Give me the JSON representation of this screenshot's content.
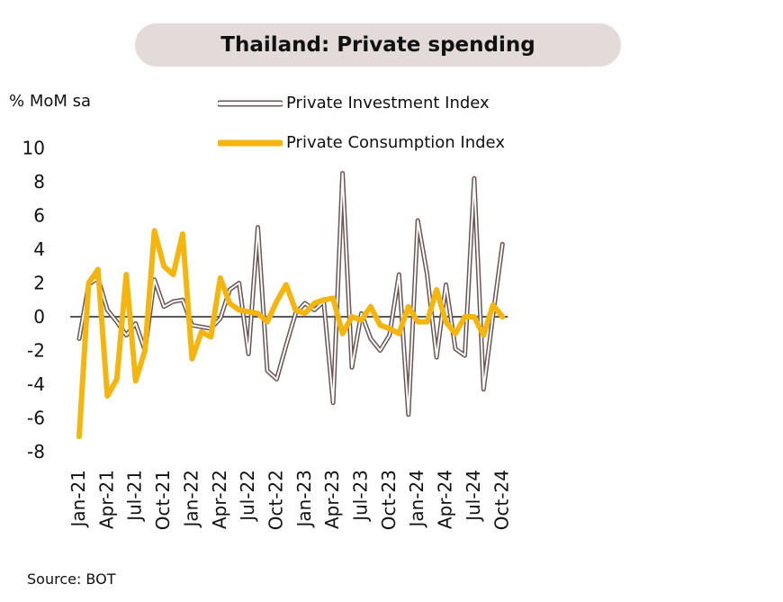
{
  "chart_data": {
    "type": "line",
    "title": "Thailand: Private spending",
    "ylabel": "% MoM sa",
    "source": "Source: BOT",
    "ylim": [
      -8,
      10
    ],
    "yticks": [
      10,
      8,
      6,
      4,
      2,
      0,
      -2,
      -4,
      -6,
      -8
    ],
    "x": [
      "Jan-21",
      "Feb-21",
      "Mar-21",
      "Apr-21",
      "May-21",
      "Jun-21",
      "Jul-21",
      "Aug-21",
      "Sep-21",
      "Oct-21",
      "Nov-21",
      "Dec-21",
      "Jan-22",
      "Feb-22",
      "Mar-22",
      "Apr-22",
      "May-22",
      "Jun-22",
      "Jul-22",
      "Aug-22",
      "Sep-22",
      "Oct-22",
      "Nov-22",
      "Dec-22",
      "Jan-23",
      "Feb-23",
      "Mar-23",
      "Apr-23",
      "May-23",
      "Jun-23",
      "Jul-23",
      "Aug-23",
      "Sep-23",
      "Oct-23",
      "Nov-23",
      "Dec-23",
      "Jan-24",
      "Feb-24",
      "Mar-24",
      "Apr-24",
      "May-24",
      "Jun-24",
      "Jul-24",
      "Aug-24",
      "Sep-24",
      "Oct-24"
    ],
    "xtick_labels": [
      "Jan-21",
      "Apr-21",
      "Jul-21",
      "Oct-21",
      "Jan-22",
      "Apr-22",
      "Jul-22",
      "Oct-22",
      "Jan-23",
      "Apr-23",
      "Jul-23",
      "Oct-23",
      "Jan-24",
      "Apr-24",
      "Jul-24",
      "Oct-24"
    ],
    "series": [
      {
        "name": "Private Investment Index",
        "style": "double-outline",
        "color": "#6b5553",
        "values": [
          -1.3,
          1.9,
          2.3,
          0.4,
          -0.3,
          -1.1,
          -0.4,
          -2.0,
          2.2,
          0.6,
          0.9,
          1.0,
          -0.5,
          -0.6,
          -0.7,
          -0.1,
          1.6,
          2.0,
          -2.2,
          5.3,
          -3.2,
          -3.7,
          -1.7,
          0.2,
          0.8,
          0.4,
          0.9,
          -5.1,
          8.5,
          -3.0,
          0.2,
          -1.3,
          -2.0,
          -1.1,
          2.5,
          -5.8,
          5.7,
          2.5,
          -2.4,
          1.9,
          -1.9,
          -2.3,
          8.2,
          -4.3,
          0.1,
          4.3
        ]
      },
      {
        "name": "Private Consumption Index",
        "style": "solid-thick",
        "color": "#f5b50f",
        "values": [
          -7.1,
          2.0,
          2.8,
          -4.7,
          -3.7,
          2.5,
          -3.8,
          -2.0,
          5.1,
          3.0,
          2.5,
          4.9,
          -2.5,
          -0.9,
          -1.2,
          2.3,
          0.8,
          0.4,
          0.3,
          0.2,
          -0.3,
          0.9,
          1.9,
          0.4,
          0.2,
          0.8,
          1.0,
          1.1,
          -1.0,
          0.0,
          -0.2,
          0.6,
          -0.5,
          -0.7,
          -1.0,
          0.6,
          -0.3,
          -0.3,
          1.6,
          -0.3,
          -1.0,
          0.0,
          0.0,
          -1.1,
          0.7,
          0.0
        ]
      }
    ],
    "legend_position": "top"
  }
}
